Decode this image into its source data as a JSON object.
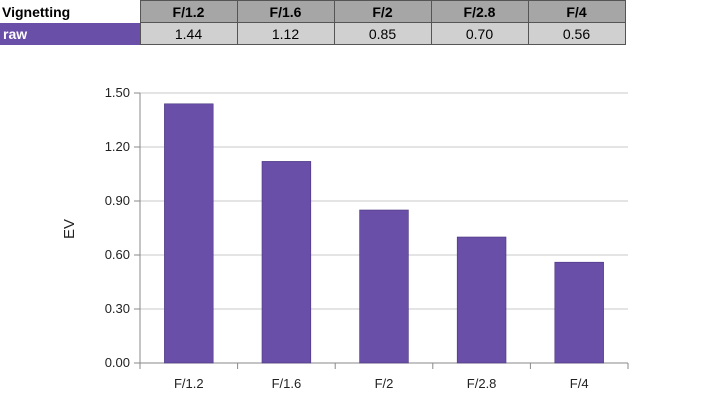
{
  "table": {
    "corner_label": "Vignetting",
    "row_label": "raw",
    "row_color": "#6a4fa8",
    "headers": [
      "F/1.2",
      "F/1.6",
      "F/2",
      "F/2.8",
      "F/4"
    ],
    "values": [
      "1.44",
      "1.12",
      "0.85",
      "0.70",
      "0.56"
    ]
  },
  "chart_data": {
    "type": "bar",
    "categories": [
      "F/1.2",
      "F/1.6",
      "F/2",
      "F/2.8",
      "F/4"
    ],
    "values": [
      1.44,
      1.12,
      0.85,
      0.7,
      0.56
    ],
    "title": "",
    "xlabel": "",
    "ylabel": "EV",
    "ylim": [
      0,
      1.5
    ],
    "yticks": [
      "0.00",
      "0.30",
      "0.60",
      "0.90",
      "1.20",
      "1.50"
    ],
    "grid": true,
    "bar_color": "#6a4fa8"
  }
}
